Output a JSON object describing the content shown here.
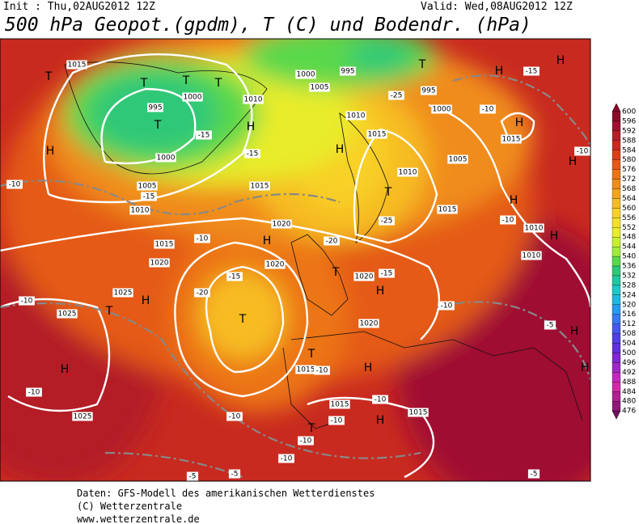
{
  "header": {
    "init": "Init : Thu,02AUG2012 12Z",
    "valid": "Valid: Wed,08AUG2012 12Z",
    "title": "500 hPa Geopot.(gpdm), T (C) und Bodendr. (hPa)"
  },
  "legend": {
    "levels": [
      600,
      596,
      592,
      588,
      584,
      580,
      576,
      572,
      568,
      564,
      560,
      556,
      552,
      548,
      544,
      540,
      536,
      532,
      528,
      524,
      520,
      516,
      512,
      508,
      504,
      500,
      496,
      492,
      488,
      484,
      480,
      476
    ],
    "colors": [
      "#8b0a2a",
      "#a01030",
      "#b41e28",
      "#c82a20",
      "#d94018",
      "#e45a16",
      "#ec7418",
      "#f08c1c",
      "#f4a420",
      "#f6bc24",
      "#f8d028",
      "#f4e02c",
      "#e8ec2c",
      "#c8f030",
      "#a0ec3c",
      "#5ad84c",
      "#2ec878",
      "#20c8a0",
      "#20c8c8",
      "#20b8e0",
      "#2898f0",
      "#3878f0",
      "#4858e8",
      "#5040e0",
      "#6030d8",
      "#8028d0",
      "#a028c8",
      "#c028c0",
      "#d028a8",
      "#b02090",
      "#901878",
      "#701060"
    ]
  },
  "map": {
    "labels": [
      "H",
      "H",
      "T",
      "T",
      "H",
      "H",
      "H",
      "T",
      "T",
      "T",
      "T",
      "H",
      "H",
      "H",
      "H",
      "T",
      "T",
      "H",
      "T",
      "H",
      "T",
      "H",
      "T",
      "H",
      "H",
      "H",
      "H",
      "T",
      "H",
      "1015",
      "1000",
      "995",
      "1005",
      "1010",
      "1010",
      "1015",
      "1010",
      "1005",
      "1000",
      "995",
      "1005",
      "1010",
      "1015",
      "1020",
      "1015",
      "1020",
      "1020",
      "1025",
      "1025",
      "1025",
      "1020",
      "1020",
      "1015",
      "1015",
      "1015",
      "1015",
      "1010",
      "1010",
      "1015",
      "1000",
      "995",
      "1000",
      "-10",
      "-10",
      "-10",
      "-10",
      "-10",
      "-10",
      "-10",
      "-10",
      "-10",
      "-10",
      "-10",
      "-15",
      "-5",
      "-5",
      "-5",
      "-5",
      "-15",
      "-15",
      "-15",
      "-20",
      "-25",
      "-25",
      "-15",
      "-20",
      "-10",
      "-15",
      "-10",
      "-10"
    ]
  },
  "footer": {
    "lines": [
      "Daten: GFS-Modell des amerikanischen Wetterdienstes",
      "(C) Wetterzentrale",
      "www.wetterzentrale.de"
    ]
  }
}
